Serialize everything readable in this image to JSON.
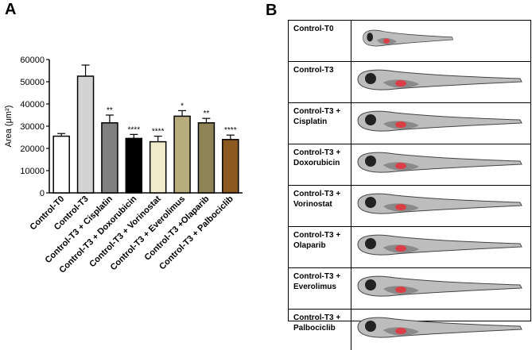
{
  "panels": {
    "a": "A",
    "b": "B"
  },
  "chart_data": {
    "type": "bar",
    "y_label": "Area (μm²)",
    "categories": [
      "Control-T0",
      "Control-T3",
      "Control-T3 + Cisplatin",
      "Control-T3 + Doxorubicin",
      "Control-T3 + Vorinostat",
      "Control-T3 + Everolimus",
      "Control-T3 +Olaparib",
      "Control-T3 + Palbociclib"
    ],
    "values": [
      25500,
      52500,
      31500,
      24500,
      23000,
      34500,
      31500,
      24000
    ],
    "errors": [
      1200,
      5000,
      3500,
      1800,
      2500,
      2500,
      2000,
      2000
    ],
    "significance": [
      null,
      null,
      "**",
      "****",
      "****",
      "*",
      "**",
      "****"
    ],
    "colors": [
      "#ffffff",
      "#d3d3d3",
      "#808080",
      "#000000",
      "#efeacb",
      "#b8ac7c",
      "#8e8456",
      "#8c5a20"
    ],
    "ylim": [
      0,
      60000
    ],
    "yticks": [
      0,
      10000,
      20000,
      30000,
      40000,
      50000,
      60000
    ]
  },
  "panel_b": {
    "rows": [
      "Control-T0",
      "Control-T3",
      "Control-T3 + Cisplatin",
      "Control-T3 + Doxorubicin",
      "Control-T3 + Vorinostat",
      "Control-T3 + Olaparib",
      "Control-T3 + Everolimus",
      "Control-T3 + Palbociclib"
    ]
  }
}
